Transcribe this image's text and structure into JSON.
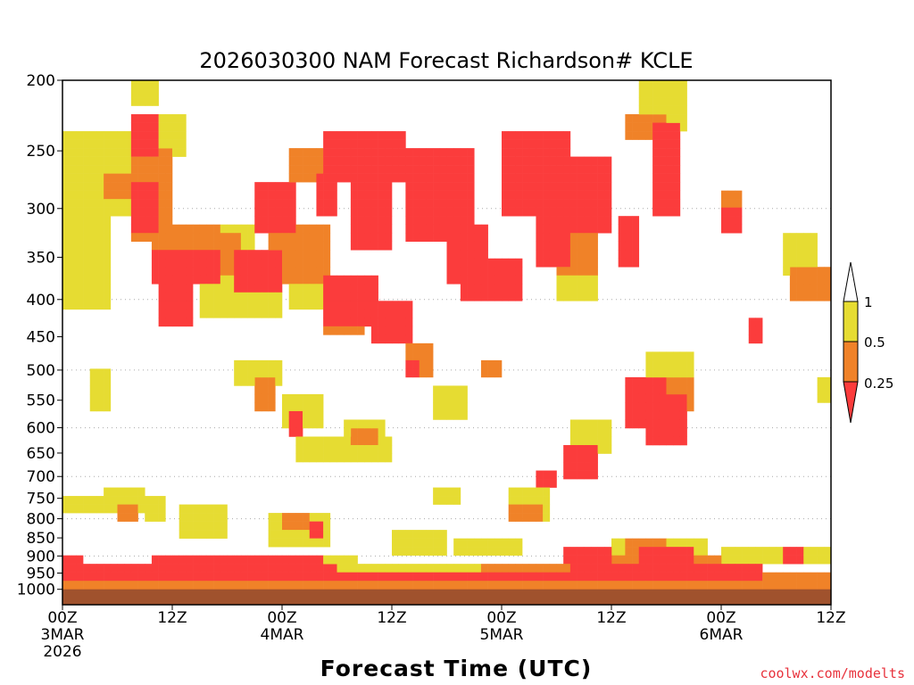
{
  "chart_data": {
    "type": "heatmap",
    "title": "2026030300 NAM Forecast Richardson# KCLE",
    "xlabel": "Forecast Time (UTC)",
    "ylabel": "Pressure (hPa)",
    "x_range_hours": [
      0,
      84
    ],
    "y_range_hpa": [
      200,
      1050
    ],
    "y_ticks": [
      200,
      250,
      300,
      350,
      400,
      450,
      500,
      550,
      600,
      650,
      700,
      750,
      800,
      850,
      900,
      950,
      1000
    ],
    "y_gridlines": [
      300,
      400,
      500,
      600,
      700,
      800,
      900
    ],
    "x_ticks": [
      {
        "hour": 0,
        "lines": [
          "00Z",
          "3MAR",
          "2026"
        ]
      },
      {
        "hour": 12,
        "lines": [
          "12Z"
        ]
      },
      {
        "hour": 24,
        "lines": [
          "00Z",
          "4MAR"
        ]
      },
      {
        "hour": 36,
        "lines": [
          "12Z"
        ]
      },
      {
        "hour": 48,
        "lines": [
          "00Z",
          "5MAR"
        ]
      },
      {
        "hour": 60,
        "lines": [
          "12Z"
        ]
      },
      {
        "hour": 72,
        "lines": [
          "00Z",
          "6MAR"
        ]
      },
      {
        "hour": 84,
        "lines": [
          "12Z"
        ]
      }
    ],
    "colors": {
      "low": "#fb3c3c",
      "mid": "#f08228",
      "high": "#e6dc32",
      "ground": "#a0522d"
    },
    "legend": {
      "placement": "right",
      "labels": [
        "1",
        "0.5",
        "0.25"
      ],
      "bins": [
        {
          "label": "< 0.25",
          "color": "#fb3c3c"
        },
        {
          "label": "0.25-0.5",
          "color": "#f08228"
        },
        {
          "label": "0.5-1",
          "color": "#e6dc32"
        }
      ]
    },
    "surface_pressure_hpa": 1000,
    "regions": [
      {
        "class": "high",
        "h": [
          0,
          5
        ],
        "p": [
          240,
          410
        ]
      },
      {
        "class": "high",
        "h": [
          3,
          10
        ],
        "p": [
          240,
          300
        ]
      },
      {
        "class": "mid",
        "h": [
          5,
          8
        ],
        "p": [
          270,
          290
        ]
      },
      {
        "class": "low",
        "h": [
          8,
          10
        ],
        "p": [
          225,
          250
        ]
      },
      {
        "class": "high",
        "h": [
          8,
          10
        ],
        "p": [
          200,
          215
        ]
      },
      {
        "class": "mid",
        "h": [
          8,
          12
        ],
        "p": [
          250,
          330
        ]
      },
      {
        "class": "low",
        "h": [
          8,
          10
        ],
        "p": [
          280,
          320
        ]
      },
      {
        "class": "high",
        "h": [
          11,
          13
        ],
        "p": [
          225,
          250
        ]
      },
      {
        "class": "mid",
        "h": [
          10,
          17
        ],
        "p": [
          320,
          370
        ]
      },
      {
        "class": "low",
        "h": [
          10,
          17
        ],
        "p": [
          350,
          380
        ]
      },
      {
        "class": "low",
        "h": [
          11,
          14
        ],
        "p": [
          380,
          430
        ]
      },
      {
        "class": "high",
        "h": [
          15,
          21
        ],
        "p": [
          320,
          420
        ]
      },
      {
        "class": "mid",
        "h": [
          16,
          19
        ],
        "p": [
          330,
          370
        ]
      },
      {
        "class": "low",
        "h": [
          19,
          24
        ],
        "p": [
          350,
          390
        ]
      },
      {
        "class": "high",
        "h": [
          18,
          24
        ],
        "p": [
          380,
          420
        ]
      },
      {
        "class": "low",
        "h": [
          21,
          25
        ],
        "p": [
          280,
          320
        ]
      },
      {
        "class": "mid",
        "h": [
          23,
          29
        ],
        "p": [
          320,
          380
        ]
      },
      {
        "class": "high",
        "h": [
          25,
          29
        ],
        "p": [
          360,
          410
        ]
      },
      {
        "class": "mid",
        "h": [
          25,
          28
        ],
        "p": [
          250,
          270
        ]
      },
      {
        "class": "low",
        "h": [
          29,
          37
        ],
        "p": [
          240,
          270
        ]
      },
      {
        "class": "low",
        "h": [
          28,
          30
        ],
        "p": [
          270,
          300
        ]
      },
      {
        "class": "low",
        "h": [
          32,
          36
        ],
        "p": [
          270,
          340
        ]
      },
      {
        "class": "low",
        "h": [
          29,
          34
        ],
        "p": [
          380,
          430
        ]
      },
      {
        "class": "mid",
        "h": [
          29,
          33
        ],
        "p": [
          420,
          440
        ]
      },
      {
        "class": "low",
        "h": [
          34,
          38
        ],
        "p": [
          410,
          450
        ]
      },
      {
        "class": "low",
        "h": [
          38,
          45
        ],
        "p": [
          250,
          330
        ]
      },
      {
        "class": "low",
        "h": [
          42,
          46
        ],
        "p": [
          320,
          380
        ]
      },
      {
        "class": "low",
        "h": [
          44,
          50
        ],
        "p": [
          360,
          400
        ]
      },
      {
        "class": "low",
        "h": [
          48,
          55
        ],
        "p": [
          240,
          300
        ]
      },
      {
        "class": "low",
        "h": [
          52,
          55
        ],
        "p": [
          300,
          360
        ]
      },
      {
        "class": "mid",
        "h": [
          54,
          58
        ],
        "p": [
          320,
          370
        ]
      },
      {
        "class": "high",
        "h": [
          54,
          58
        ],
        "p": [
          370,
          400
        ]
      },
      {
        "class": "low",
        "h": [
          56,
          60
        ],
        "p": [
          260,
          320
        ]
      },
      {
        "class": "low",
        "h": [
          61,
          63
        ],
        "p": [
          310,
          360
        ]
      },
      {
        "class": "mid",
        "h": [
          62,
          66
        ],
        "p": [
          225,
          240
        ]
      },
      {
        "class": "low",
        "h": [
          65,
          67
        ],
        "p": [
          230,
          270
        ]
      },
      {
        "class": "high",
        "h": [
          63,
          68
        ],
        "p": [
          200,
          230
        ]
      },
      {
        "class": "low",
        "h": [
          65,
          67
        ],
        "p": [
          280,
          300
        ]
      },
      {
        "class": "high",
        "h": [
          3,
          5
        ],
        "p": [
          500,
          560
        ]
      },
      {
        "class": "mid",
        "h": [
          21,
          23
        ],
        "p": [
          520,
          560
        ]
      },
      {
        "class": "high",
        "h": [
          19,
          24
        ],
        "p": [
          490,
          520
        ]
      },
      {
        "class": "high",
        "h": [
          24,
          28
        ],
        "p": [
          540,
          600
        ]
      },
      {
        "class": "low",
        "h": [
          25,
          26
        ],
        "p": [
          580,
          610
        ]
      },
      {
        "class": "high",
        "h": [
          26,
          36
        ],
        "p": [
          620,
          660
        ]
      },
      {
        "class": "mid",
        "h": [
          32,
          34
        ],
        "p": [
          610,
          630
        ]
      },
      {
        "class": "high",
        "h": [
          31,
          35
        ],
        "p": [
          590,
          620
        ]
      },
      {
        "class": "mid",
        "h": [
          38,
          40
        ],
        "p": [
          470,
          500
        ]
      },
      {
        "class": "low",
        "h": [
          38,
          39
        ],
        "p": [
          490,
          510
        ]
      },
      {
        "class": "high",
        "h": [
          41,
          44
        ],
        "p": [
          530,
          580
        ]
      },
      {
        "class": "mid",
        "h": [
          46,
          48
        ],
        "p": [
          490,
          510
        ]
      },
      {
        "class": "low",
        "h": [
          62,
          66
        ],
        "p": [
          520,
          600
        ]
      },
      {
        "class": "low",
        "h": [
          64,
          68
        ],
        "p": [
          550,
          620
        ]
      },
      {
        "class": "mid",
        "h": [
          66,
          69
        ],
        "p": [
          520,
          560
        ]
      },
      {
        "class": "high",
        "h": [
          64,
          69
        ],
        "p": [
          480,
          520
        ]
      },
      {
        "class": "high",
        "h": [
          56,
          60
        ],
        "p": [
          600,
          640
        ]
      },
      {
        "class": "low",
        "h": [
          55,
          58
        ],
        "p": [
          650,
          700
        ]
      },
      {
        "class": "low",
        "h": [
          52,
          54
        ],
        "p": [
          690,
          710
        ]
      },
      {
        "class": "high",
        "h": [
          41,
          43
        ],
        "p": [
          740,
          760
        ]
      },
      {
        "class": "high",
        "h": [
          0,
          8
        ],
        "p": [
          760,
          780
        ]
      },
      {
        "class": "high",
        "h": [
          5,
          9
        ],
        "p": [
          740,
          780
        ]
      },
      {
        "class": "mid",
        "h": [
          6,
          8
        ],
        "p": [
          785,
          800
        ]
      },
      {
        "class": "high",
        "h": [
          9,
          11
        ],
        "p": [
          760,
          790
        ]
      },
      {
        "class": "high",
        "h": [
          13,
          18
        ],
        "p": [
          780,
          830
        ]
      },
      {
        "class": "high",
        "h": [
          23,
          29
        ],
        "p": [
          800,
          860
        ]
      },
      {
        "class": "mid",
        "h": [
          24,
          27
        ],
        "p": [
          790,
          810
        ]
      },
      {
        "class": "low",
        "h": [
          27,
          28
        ],
        "p": [
          820,
          840
        ]
      },
      {
        "class": "high",
        "h": [
          36,
          42
        ],
        "p": [
          840,
          880
        ]
      },
      {
        "class": "high",
        "h": [
          43,
          50
        ],
        "p": [
          860,
          890
        ]
      },
      {
        "class": "high",
        "h": [
          49,
          53
        ],
        "p": [
          740,
          790
        ]
      },
      {
        "class": "mid",
        "h": [
          49,
          52
        ],
        "p": [
          780,
          800
        ]
      },
      {
        "class": "high",
        "h": [
          60,
          70
        ],
        "p": [
          860,
          900
        ]
      },
      {
        "class": "low",
        "h": [
          63,
          69
        ],
        "p": [
          880,
          905
        ]
      },
      {
        "class": "mid",
        "h": [
          62,
          66
        ],
        "p": [
          870,
          890
        ]
      },
      {
        "class": "low",
        "h": [
          55,
          60
        ],
        "p": [
          890,
          910
        ]
      },
      {
        "class": "high",
        "h": [
          72,
          84
        ],
        "p": [
          880,
          910
        ]
      },
      {
        "class": "low",
        "h": [
          79,
          81
        ],
        "p": [
          890,
          900
        ]
      },
      {
        "class": "mid",
        "h": [
          80,
          84
        ],
        "p": [
          370,
          400
        ]
      },
      {
        "class": "high",
        "h": [
          79,
          82
        ],
        "p": [
          330,
          370
        ]
      },
      {
        "class": "low",
        "h": [
          75,
          76
        ],
        "p": [
          430,
          450
        ]
      },
      {
        "class": "mid",
        "h": [
          72,
          74
        ],
        "p": [
          290,
          310
        ]
      },
      {
        "class": "low",
        "h": [
          72,
          74
        ],
        "p": [
          300,
          320
        ]
      },
      {
        "class": "high",
        "h": [
          83,
          84
        ],
        "p": [
          520,
          540
        ]
      },
      {
        "class": "low",
        "h": [
          0,
          2
        ],
        "p": [
          918,
          934
        ]
      },
      {
        "class": "low",
        "h": [
          0,
          30
        ],
        "p": [
          935,
          960
        ]
      },
      {
        "class": "mid",
        "h": [
          3,
          12
        ],
        "p": [
          925,
          945
        ]
      },
      {
        "class": "low",
        "h": [
          10,
          28
        ],
        "p": [
          920,
          940
        ]
      },
      {
        "class": "high",
        "h": [
          12,
          32
        ],
        "p": [
          905,
          925
        ]
      },
      {
        "class": "high",
        "h": [
          30,
          60
        ],
        "p": [
          925,
          945
        ]
      },
      {
        "class": "low",
        "h": [
          30,
          56
        ],
        "p": [
          950,
          965
        ]
      },
      {
        "class": "mid",
        "h": [
          46,
          58
        ],
        "p": [
          945,
          960
        ]
      },
      {
        "class": "low",
        "h": [
          56,
          70
        ],
        "p": [
          930,
          965
        ]
      },
      {
        "class": "mid",
        "h": [
          60,
          72
        ],
        "p": [
          920,
          935
        ]
      },
      {
        "class": "low",
        "h": [
          70,
          76
        ],
        "p": [
          945,
          965
        ]
      },
      {
        "class": "high",
        "h": [
          74,
          84
        ],
        "p": [
          955,
          970
        ]
      },
      {
        "class": "mid",
        "h": [
          0,
          84
        ],
        "p": [
          968,
          985
        ]
      }
    ]
  },
  "credit": "coolwx.com/modelts"
}
